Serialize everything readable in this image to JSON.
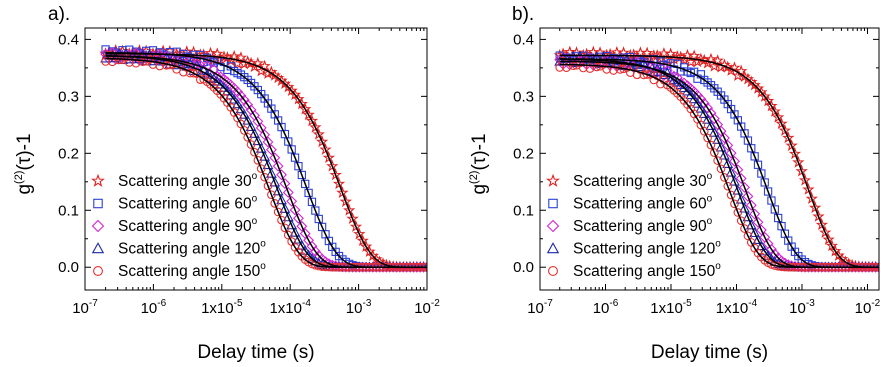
{
  "chart_data": [
    {
      "type": "scatter",
      "panel_label": "a).",
      "xlabel": "Delay time (s)",
      "ylabel_main": "g",
      "ylabel_sup": "(2)",
      "ylabel_rest": "(τ)-1",
      "x_scale": "log",
      "xlim": [
        1e-07,
        0.01
      ],
      "ylim": [
        -0.04,
        0.42
      ],
      "x_ticks": [
        {
          "value": 1e-07,
          "base": "10",
          "exp": "-7"
        },
        {
          "value": 1e-06,
          "base": "10",
          "exp": "-6"
        },
        {
          "value": 1e-05,
          "base": "1x10",
          "exp": "-5"
        },
        {
          "value": 0.0001,
          "base": "1x10",
          "exp": "-4"
        },
        {
          "value": 0.001,
          "base": "10",
          "exp": "-3"
        },
        {
          "value": 0.01,
          "base": "10",
          "exp": "-2"
        }
      ],
      "y_ticks": [
        {
          "value": 0.0,
          "label": "0.0"
        },
        {
          "value": 0.1,
          "label": "0.1"
        },
        {
          "value": 0.2,
          "label": "0.2"
        },
        {
          "value": 0.3,
          "label": "0.3"
        },
        {
          "value": 0.4,
          "label": "0.4"
        }
      ],
      "grid": false,
      "legend_position": "bottom-left",
      "fit_line_color": "#000000",
      "series": [
        {
          "name": "Scattering angle  30",
          "degree_mark": "o",
          "marker": "star",
          "color": "#e02020",
          "plateau": 0.375,
          "tau_s": 0.0011,
          "baseline": 0.0
        },
        {
          "name": "Scattering angle  60",
          "degree_mark": "o",
          "marker": "square",
          "color": "#2b3fd6",
          "plateau": 0.377,
          "tau_s": 0.00035,
          "baseline": 0.0
        },
        {
          "name": "Scattering angle  90",
          "degree_mark": "o",
          "marker": "diamond",
          "color": "#d424d4",
          "plateau": 0.372,
          "tau_s": 0.00018,
          "baseline": 0.0
        },
        {
          "name": "Scattering angle  120",
          "degree_mark": "o",
          "marker": "triangle",
          "color": "#1c2aa8",
          "plateau": 0.372,
          "tau_s": 0.00013,
          "baseline": 0.0
        },
        {
          "name": "Scattering angle  150",
          "degree_mark": "o",
          "marker": "circle",
          "color": "#e83030",
          "plateau": 0.368,
          "tau_s": 0.0001,
          "baseline": 0.0
        }
      ]
    },
    {
      "type": "scatter",
      "panel_label": "b).",
      "xlabel": "Delay time (s)",
      "ylabel_main": "g",
      "ylabel_sup": "(2)",
      "ylabel_rest": "(τ)-1",
      "x_scale": "log",
      "xlim": [
        1e-07,
        0.015
      ],
      "ylim": [
        -0.04,
        0.42
      ],
      "x_ticks": [
        {
          "value": 1e-07,
          "base": "10",
          "exp": "-7"
        },
        {
          "value": 1e-06,
          "base": "10",
          "exp": "-6"
        },
        {
          "value": 1e-05,
          "base": "1x10",
          "exp": "-5"
        },
        {
          "value": 0.0001,
          "base": "1x10",
          "exp": "-4"
        },
        {
          "value": 0.001,
          "base": "10",
          "exp": "-3"
        },
        {
          "value": 0.01,
          "base": "10",
          "exp": "-2"
        }
      ],
      "y_ticks": [
        {
          "value": 0.0,
          "label": "0.0"
        },
        {
          "value": 0.1,
          "label": "0.1"
        },
        {
          "value": 0.2,
          "label": "0.2"
        },
        {
          "value": 0.3,
          "label": "0.3"
        },
        {
          "value": 0.4,
          "label": "0.4"
        }
      ],
      "grid": false,
      "legend_position": "bottom-left",
      "fit_line_color": "#000000",
      "series": [
        {
          "name": "Scattering angle  30",
          "degree_mark": "o",
          "marker": "star",
          "color": "#e02020",
          "plateau": 0.372,
          "tau_s": 0.0025,
          "baseline": 0.0
        },
        {
          "name": "Scattering angle  60",
          "degree_mark": "o",
          "marker": "square",
          "color": "#2b3fd6",
          "plateau": 0.366,
          "tau_s": 0.0006,
          "baseline": 0.0
        },
        {
          "name": "Scattering angle  90",
          "degree_mark": "o",
          "marker": "diamond",
          "color": "#d424d4",
          "plateau": 0.362,
          "tau_s": 0.00028,
          "baseline": 0.0
        },
        {
          "name": "Scattering angle  120",
          "degree_mark": "o",
          "marker": "triangle",
          "color": "#1c2aa8",
          "plateau": 0.366,
          "tau_s": 0.00021,
          "baseline": 0.0
        },
        {
          "name": "Scattering angle  150",
          "degree_mark": "o",
          "marker": "circle",
          "color": "#e83030",
          "plateau": 0.357,
          "tau_s": 0.00016,
          "baseline": 0.0
        }
      ]
    }
  ]
}
